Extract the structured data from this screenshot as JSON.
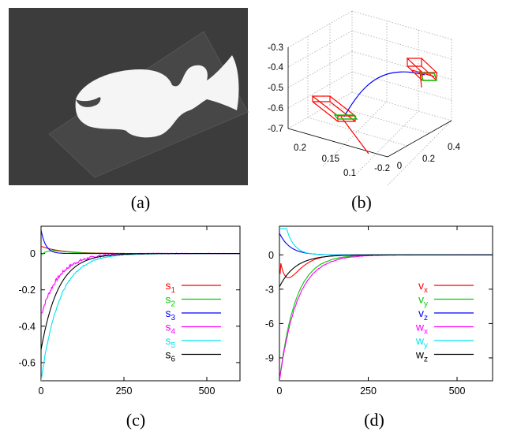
{
  "captions": {
    "a": "(a)",
    "b": "(b)",
    "c": "(c)",
    "d": "(d)"
  },
  "photo": {
    "description_icon": "photo-object-icon",
    "background": "#3c3c3c",
    "plate": "#4a4a4a",
    "shape": "#f4f4f4"
  },
  "chart_data": [
    {
      "panel": "b",
      "type": "line3d",
      "y_ticks": [
        "0.1",
        "0.15",
        "0.2"
      ],
      "x_ticks": [
        "-0.2",
        "0",
        "0.2",
        "0.4"
      ],
      "z_ticks": [
        "-0.3",
        "-0.4",
        "-0.5",
        "-0.6",
        "-0.7"
      ],
      "zlim": [
        -0.7,
        -0.3
      ],
      "grid": true,
      "series_colors": {
        "trajectory": "#0000ff",
        "camera_frame": "#ff0000",
        "target_frame": "#00dd00"
      }
    },
    {
      "panel": "c",
      "type": "line",
      "xlim": [
        0,
        600
      ],
      "ylim": [
        -0.7,
        0.15
      ],
      "x_ticks": [
        "0",
        "250",
        "500"
      ],
      "y_ticks": [
        "0",
        "-0.2",
        "-0.4",
        "-0.6"
      ],
      "x_tick_values": [
        0,
        250,
        500
      ],
      "y_tick_values": [
        0,
        -0.2,
        -0.4,
        -0.6
      ],
      "legend_placement": "bottom-right",
      "series": [
        {
          "name": "s",
          "sub": "1",
          "color": "#ff0000",
          "start": 0.04,
          "tau": 60,
          "noise": 0.0
        },
        {
          "name": "s",
          "sub": "2",
          "color": "#00cc00",
          "start": -0.01,
          "tau": 25,
          "noise": 0.0,
          "bump": 0.03
        },
        {
          "name": "s",
          "sub": "3",
          "color": "#0000ff",
          "start": 0.13,
          "tau": 14,
          "noise": 0.0
        },
        {
          "name": "s",
          "sub": "4",
          "color": "#ff00ff",
          "start": -0.34,
          "tau": 55,
          "noise": 0.012
        },
        {
          "name": "s",
          "sub": "5",
          "color": "#00e5ee",
          "start": -0.7,
          "tau": 55,
          "noise": 0.006,
          "delay": 0
        },
        {
          "name": "s",
          "sub": "6",
          "color": "#000000",
          "start": -0.53,
          "tau": 52,
          "noise": 0.0,
          "delay": 0
        }
      ]
    },
    {
      "panel": "d",
      "type": "line",
      "xlim": [
        0,
        600
      ],
      "ylim": [
        -11,
        2.5
      ],
      "x_ticks": [
        "0",
        "250",
        "500"
      ],
      "y_ticks": [
        "0",
        "-3",
        "-6",
        "-9"
      ],
      "x_tick_values": [
        0,
        250,
        500
      ],
      "y_tick_values": [
        0,
        -3,
        -6,
        -9
      ],
      "legend_placement": "bottom-right",
      "series": [
        {
          "name": "v",
          "sub": "x",
          "color": "#ff0000",
          "start": -1.6,
          "tau": 22,
          "noise": 0.0,
          "dip": -2.0
        },
        {
          "name": "v",
          "sub": "y",
          "color": "#00cc00",
          "start": -11.0,
          "tau": 45,
          "noise": 0.04
        },
        {
          "name": "v",
          "sub": "z",
          "color": "#0000ff",
          "start": 1.9,
          "tau": 30,
          "noise": 0.0
        },
        {
          "name": "w",
          "sub": "x",
          "color": "#ff00ff",
          "start": -11.0,
          "tau": 50,
          "noise": 0.06
        },
        {
          "name": "w",
          "sub": "y",
          "color": "#00e5ee",
          "start": 2.3,
          "tau": 22,
          "noise": 0.0,
          "plateau": 20
        },
        {
          "name": "w",
          "sub": "z",
          "color": "#000000",
          "start": -2.8,
          "tau": 45,
          "noise": 0.0
        }
      ]
    }
  ]
}
